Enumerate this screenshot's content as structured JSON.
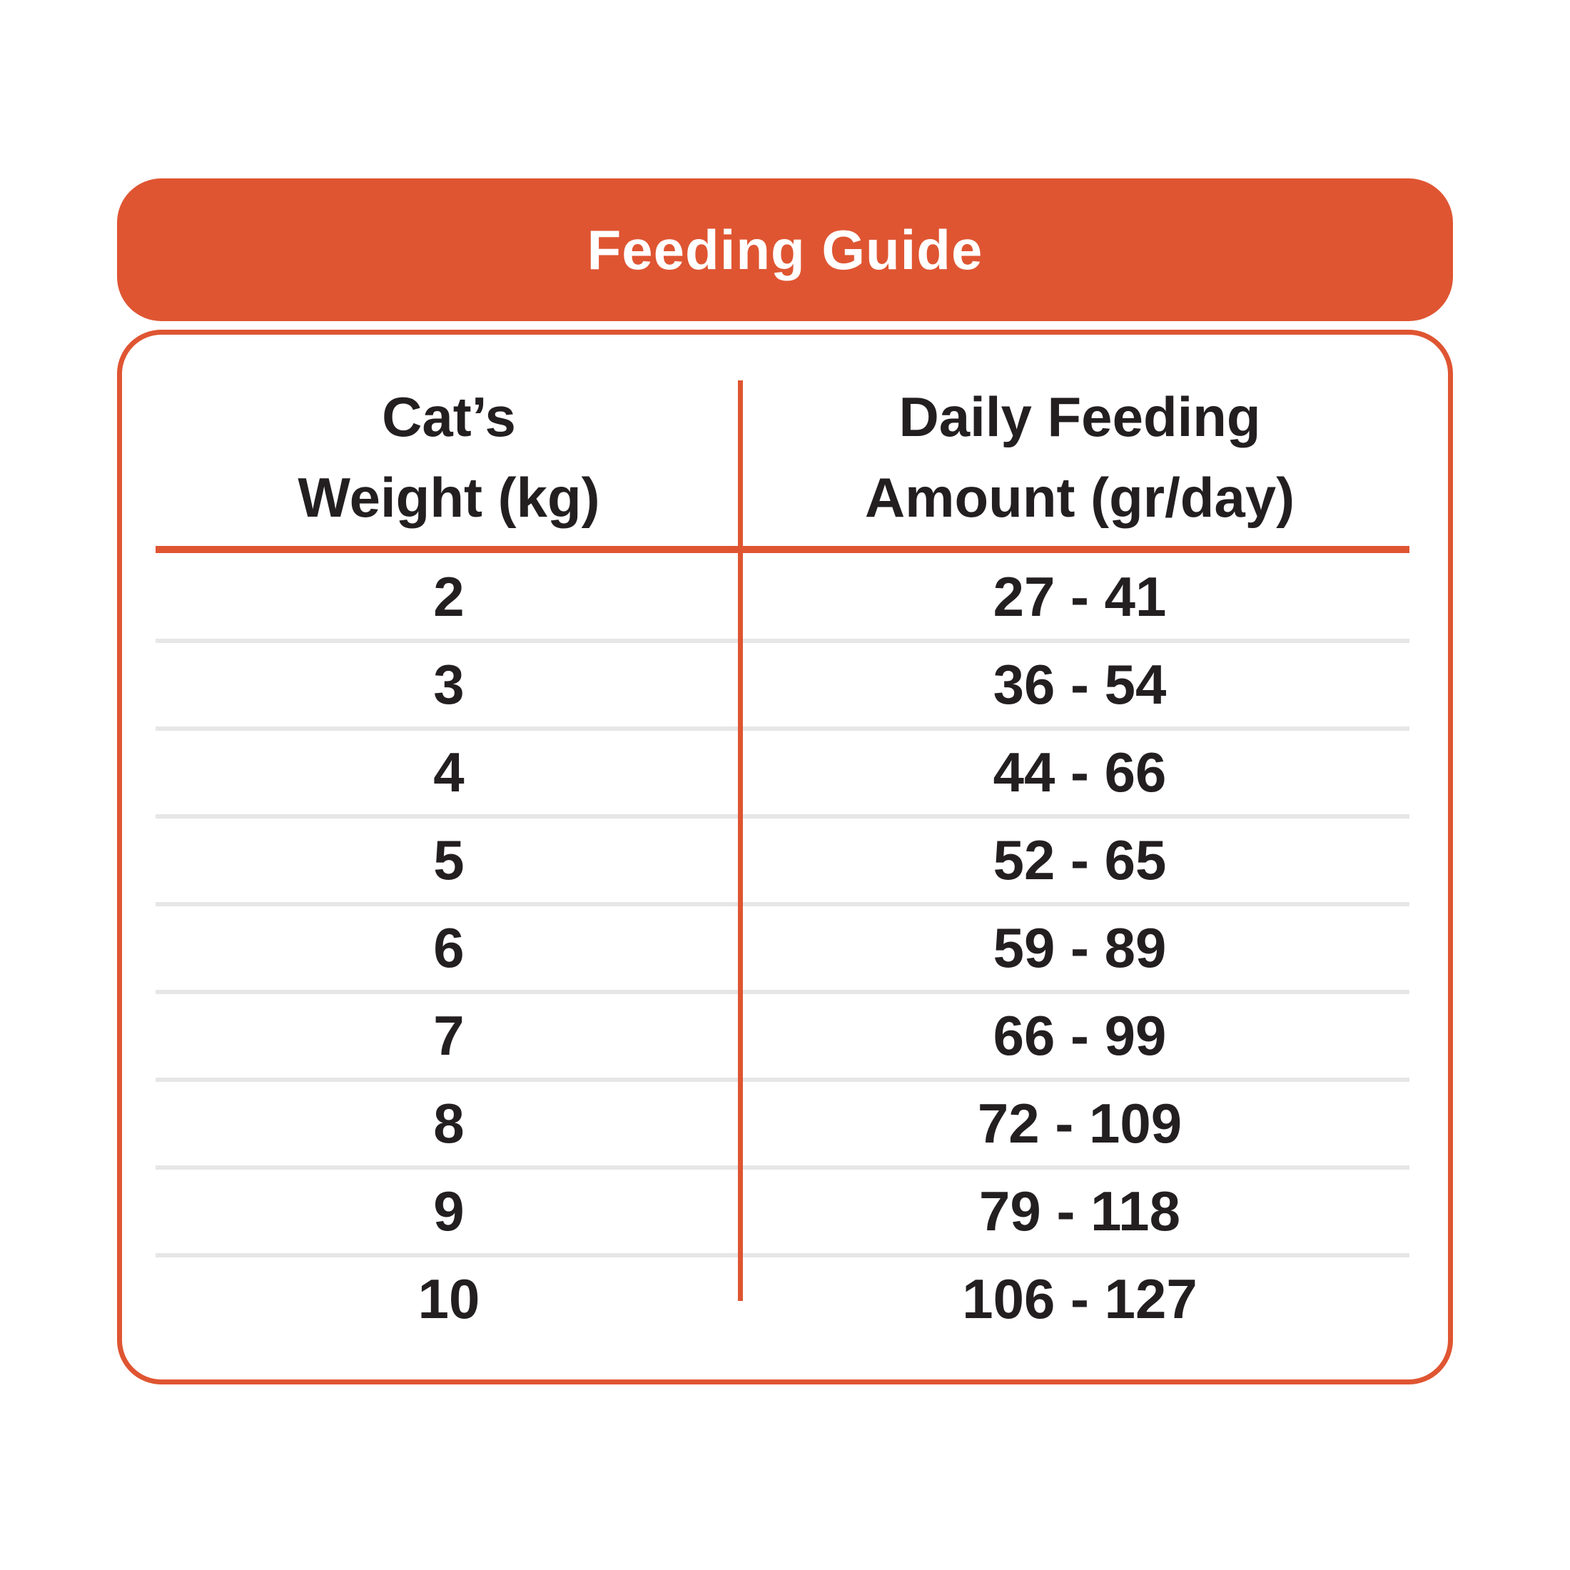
{
  "header": {
    "title": "Feeding Guide"
  },
  "table": {
    "weight_header": {
      "line1": "Cat’s",
      "line2": "Weight (kg)"
    },
    "amount_header": {
      "line1": "Daily Feeding",
      "line2": "Amount (gr/day)"
    }
  },
  "chart_data": {
    "type": "table",
    "title": "Feeding Guide",
    "columns": [
      "Cat’s Weight (kg)",
      "Daily Feeding Amount (gr/day)"
    ],
    "rows": [
      [
        "2",
        "27 - 41"
      ],
      [
        "3",
        "36 - 54"
      ],
      [
        "4",
        "44 - 66"
      ],
      [
        "5",
        "52 - 65"
      ],
      [
        "6",
        "59 - 89"
      ],
      [
        "7",
        "66 - 99"
      ],
      [
        "8",
        "72 - 109"
      ],
      [
        "9",
        "79 - 118"
      ],
      [
        "10",
        "106 - 127"
      ]
    ],
    "weights_kg": [
      2,
      3,
      4,
      5,
      6,
      7,
      8,
      9,
      10
    ],
    "amount_min_gr_per_day": [
      27,
      36,
      44,
      52,
      59,
      66,
      72,
      79,
      106
    ],
    "amount_max_gr_per_day": [
      41,
      54,
      66,
      65,
      89,
      99,
      109,
      118,
      127
    ]
  },
  "colors": {
    "accent": "#DF5532",
    "text": "#231F20",
    "row_divider": "#E6E6E6",
    "header_text": "#FFFFFF",
    "background": "#FFFFFF"
  }
}
